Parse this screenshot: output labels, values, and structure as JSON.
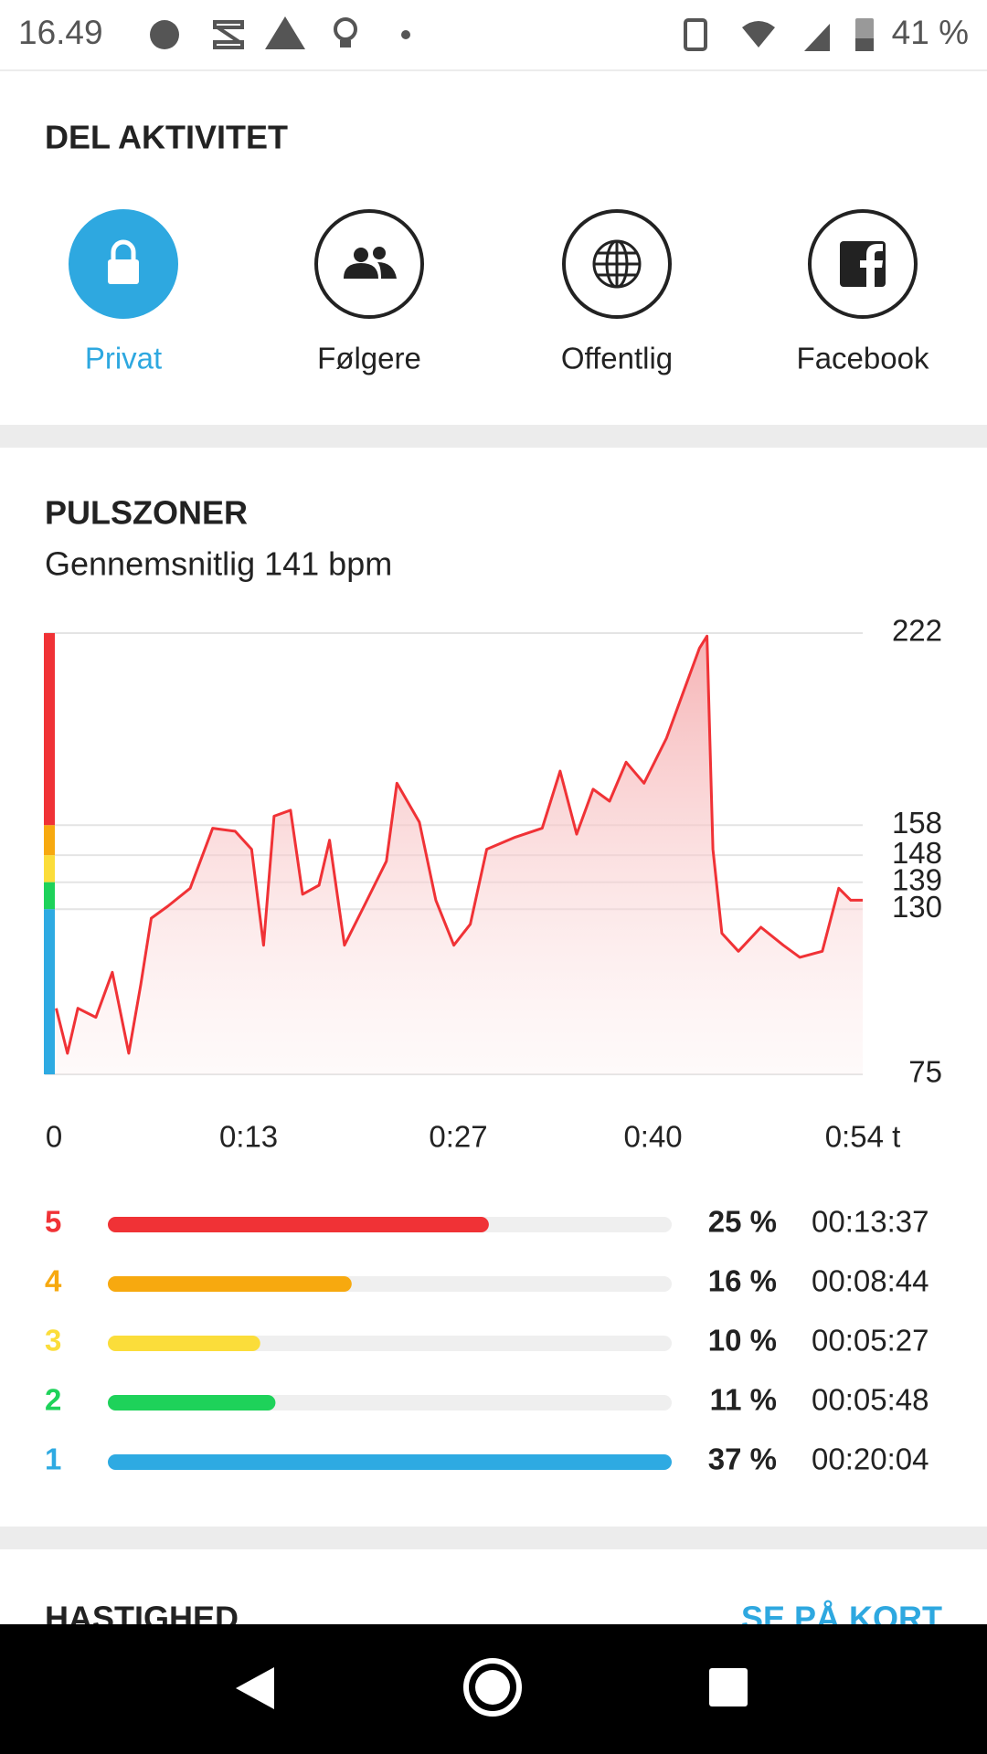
{
  "status_bar": {
    "time": "16.49",
    "battery": "41 %"
  },
  "share": {
    "title": "DEL AKTIVITET",
    "options": [
      "Privat",
      "Følgere",
      "Offentlig",
      "Facebook"
    ],
    "active_color": "#2ea8e0"
  },
  "heart_rate": {
    "type": "line",
    "title": "PULSZONER",
    "subtitle": "Gennemsnitlig 141 bpm",
    "color": "#f03236",
    "x": [
      0.15,
      0.9,
      1.6,
      2.8,
      3.9,
      5.0,
      5.8,
      6.5,
      7.6,
      9.1,
      10.6,
      12.1,
      13.2,
      14.0,
      14.7,
      15.8,
      16.6,
      17.7,
      18.4,
      19.4,
      20.7,
      22.2,
      22.9,
      24.4,
      25.5,
      26.7,
      27.8,
      28.9,
      30.8,
      32.6,
      33.8,
      34.9,
      36.0,
      37.1,
      38.2,
      39.4,
      40.9,
      42.0,
      43.1,
      43.6,
      44.0,
      44.6,
      45.7,
      47.2,
      48.7,
      49.8,
      51.3,
      52.4,
      53.2,
      54.0
    ],
    "values": [
      97,
      82,
      97,
      94,
      109,
      82,
      105,
      127,
      131,
      137,
      157,
      156,
      150,
      118,
      161,
      163,
      135,
      138,
      153,
      118,
      131,
      146,
      172,
      159,
      133,
      118,
      125,
      150,
      154,
      157,
      176,
      155,
      170,
      166,
      179,
      172,
      187,
      202,
      217,
      221,
      150,
      122,
      116,
      124,
      118,
      114,
      116,
      137,
      133,
      133
    ],
    "xlim": [
      0,
      54
    ],
    "xticks": [
      0,
      {
        "value": 13,
        "label": "0:13"
      },
      {
        "value": 27,
        "label": "0:27"
      },
      {
        "value": 40,
        "label": "0:40"
      },
      {
        "value": 54,
        "label": "0:54 t"
      }
    ],
    "ylim": [
      75,
      222
    ],
    "yticks": [
      222,
      158,
      148,
      139,
      130,
      75
    ],
    "grid": true
  },
  "zones": {
    "names": [
      "5",
      "4",
      "3",
      "2",
      "1"
    ],
    "colors": [
      "#f03236",
      "#f7a90f",
      "#fbdd3a",
      "#1ed25a",
      "#2eaae2"
    ],
    "values": [
      25,
      16,
      10,
      11,
      37
    ],
    "value_labels": [
      "25 %",
      "16 %",
      "10 %",
      "11 %",
      "37 %"
    ],
    "durations": [
      "00:13:37",
      "00:08:44",
      "00:05:27",
      "00:05:48",
      "00:20:04"
    ]
  },
  "speed": {
    "title": "HASTIGHED",
    "link": "SE PÅ KORT"
  }
}
